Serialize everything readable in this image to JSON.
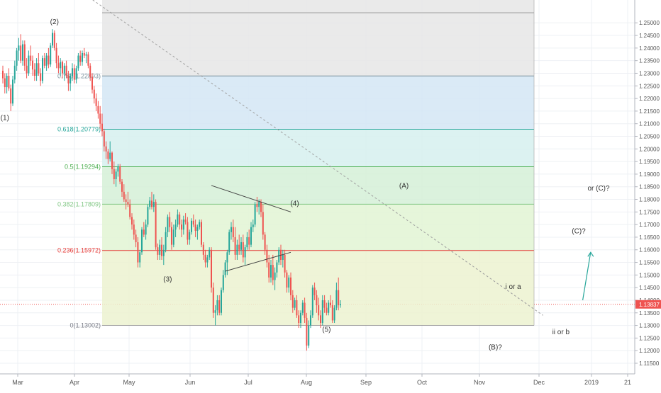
{
  "chart_data": {
    "type": "candlestick",
    "timeframe": "daily",
    "ylim": [
      1.115,
      1.254
    ],
    "axis": {
      "y_ticks": [
        "1.25000",
        "1.24500",
        "1.24000",
        "1.23500",
        "1.23000",
        "1.22500",
        "1.22000",
        "1.21500",
        "1.21000",
        "1.20500",
        "1.20000",
        "1.19500",
        "1.19000",
        "1.18500",
        "1.18000",
        "1.17500",
        "1.17000",
        "1.16500",
        "1.16000",
        "1.15500",
        "1.15000",
        "1.14500",
        "1.14000",
        "1.13500",
        "1.13000",
        "1.12500",
        "1.12000",
        "1.11500"
      ],
      "x_ticks": [
        "Mar",
        "Apr",
        "May",
        "Jun",
        "Jul",
        "Aug",
        "Sep",
        "Oct",
        "Nov",
        "Dec",
        "2019",
        "21"
      ],
      "last_price_label": "1.13837",
      "last_price_value": 1.13837
    },
    "fibonacci": {
      "start_index": 50,
      "end_index": 260,
      "levels": [
        {
          "label": "1(1.25400)",
          "value": 1.254,
          "show_label": false,
          "line": "#9e9e9e",
          "fill": "#e6e6e6"
        },
        {
          "label": "0.786(1.22893)",
          "value": 1.22893,
          "show_label": true,
          "line": "#78909c",
          "fill": "#d4e6f4",
          "text": "#78909c"
        },
        {
          "label": "0.618(1.20779)",
          "value": 1.20779,
          "show_label": true,
          "line": "#26a69a",
          "fill": "#d6f0ee",
          "text": "#26a69a"
        },
        {
          "label": "0.5(1.19294)",
          "value": 1.19294,
          "show_label": true,
          "line": "#4caf50",
          "fill": "#d5f0d7",
          "text": "#4caf50"
        },
        {
          "label": "0.382(1.17809)",
          "value": 1.17809,
          "show_label": true,
          "line": "#81c784",
          "fill": "#e2f4d4",
          "text": "#81c784"
        },
        {
          "label": "0.236(1.15972)",
          "value": 1.15972,
          "show_label": true,
          "line": "#e53935",
          "fill": "#ecf2d0",
          "text": "#e53935"
        },
        {
          "label": "0(1.13002)",
          "value": 1.13002,
          "show_label": true,
          "line": "#9e9e9e",
          "fill": "#f6d4d3",
          "text": "#787b86"
        }
      ]
    },
    "annotations": [
      {
        "text": "(2)",
        "x": 26,
        "y": 1.2495
      },
      {
        "text": "(1)",
        "x": 1,
        "y": 1.2115
      },
      {
        "text": "(3)",
        "x": 83,
        "y": 1.1475
      },
      {
        "text": "(4)",
        "x": 147,
        "y": 1.1775
      },
      {
        "text": "(5)",
        "x": 163,
        "y": 1.1275
      },
      {
        "text": "(A)",
        "x": 202,
        "y": 1.1845
      },
      {
        "text": "i or a",
        "x": 257,
        "y": 1.1445
      },
      {
        "text": "(B)?",
        "x": 248,
        "y": 1.1205
      },
      {
        "text": "ii or b",
        "x": 281,
        "y": 1.1265
      },
      {
        "text": "(C)?",
        "x": 290,
        "y": 1.1665
      },
      {
        "text": "or (C)?",
        "x": 300,
        "y": 1.1835
      }
    ],
    "trendlines": [
      {
        "name": "triangle-upper",
        "x1": 105,
        "y1": 1.1855,
        "x2": 145,
        "y2": 1.175,
        "style": "solid"
      },
      {
        "name": "triangle-lower",
        "x1": 112,
        "y1": 1.1515,
        "x2": 145,
        "y2": 1.159,
        "style": "solid"
      },
      {
        "name": "long-trend",
        "x1": 40,
        "y1": 1.262,
        "x2": 272,
        "y2": 1.134,
        "style": "dashed"
      }
    ],
    "projection_arrow": {
      "x1": 292,
      "y1": 1.14,
      "x2": 296,
      "y2": 1.159
    },
    "candles": [
      [
        1.231,
        1.233,
        1.226,
        1.228
      ],
      [
        1.228,
        1.23,
        1.222,
        1.2245
      ],
      [
        1.2245,
        1.23,
        1.222,
        1.229
      ],
      [
        1.229,
        1.232,
        1.223,
        1.224
      ],
      [
        1.224,
        1.2255,
        1.215,
        1.218
      ],
      [
        1.218,
        1.229,
        1.217,
        1.2275
      ],
      [
        1.2275,
        1.235,
        1.226,
        1.233
      ],
      [
        1.233,
        1.24,
        1.231,
        1.239
      ],
      [
        1.239,
        1.244,
        1.235,
        1.241
      ],
      [
        1.241,
        1.2455,
        1.234,
        1.235
      ],
      [
        1.235,
        1.243,
        1.233,
        1.2415
      ],
      [
        1.2415,
        1.243,
        1.231,
        1.233
      ],
      [
        1.233,
        1.236,
        1.228,
        1.23
      ],
      [
        1.23,
        1.239,
        1.229,
        1.237
      ],
      [
        1.237,
        1.241,
        1.233,
        1.235
      ],
      [
        1.235,
        1.237,
        1.229,
        1.2315
      ],
      [
        1.2315,
        1.234,
        1.227,
        1.229
      ],
      [
        1.229,
        1.236,
        1.227,
        1.234
      ],
      [
        1.234,
        1.238,
        1.229,
        1.23
      ],
      [
        1.23,
        1.232,
        1.225,
        1.227
      ],
      [
        1.227,
        1.237,
        1.226,
        1.236
      ],
      [
        1.236,
        1.238,
        1.232,
        1.233
      ],
      [
        1.233,
        1.238,
        1.231,
        1.237
      ],
      [
        1.237,
        1.24,
        1.232,
        1.2335
      ],
      [
        1.2335,
        1.242,
        1.2325,
        1.241
      ],
      [
        1.241,
        1.2475,
        1.24,
        1.246
      ],
      [
        1.246,
        1.247,
        1.239,
        1.24
      ],
      [
        1.24,
        1.242,
        1.232,
        1.234
      ],
      [
        1.234,
        1.237,
        1.23,
        1.232
      ],
      [
        1.232,
        1.236,
        1.229,
        1.2345
      ],
      [
        1.2345,
        1.235,
        1.228,
        1.23
      ],
      [
        1.23,
        1.234,
        1.227,
        1.233
      ],
      [
        1.233,
        1.235,
        1.228,
        1.229
      ],
      [
        1.229,
        1.231,
        1.223,
        1.226
      ],
      [
        1.226,
        1.23,
        1.223,
        1.229
      ],
      [
        1.229,
        1.234,
        1.227,
        1.232
      ],
      [
        1.232,
        1.2335,
        1.226,
        1.2275
      ],
      [
        1.2275,
        1.233,
        1.226,
        1.232
      ],
      [
        1.232,
        1.238,
        1.231,
        1.237
      ],
      [
        1.237,
        1.239,
        1.233,
        1.2345
      ],
      [
        1.2345,
        1.239,
        1.233,
        1.238
      ],
      [
        1.238,
        1.24,
        1.236,
        1.237
      ],
      [
        1.237,
        1.2385,
        1.234,
        1.2375
      ],
      [
        1.2375,
        1.2385,
        1.232,
        1.233
      ],
      [
        1.233,
        1.234,
        1.227,
        1.2285
      ],
      [
        1.2285,
        1.23,
        1.222,
        1.2235
      ],
      [
        1.2235,
        1.225,
        1.218,
        1.22
      ],
      [
        1.22,
        1.222,
        1.215,
        1.217
      ],
      [
        1.217,
        1.219,
        1.212,
        1.214
      ],
      [
        1.214,
        1.217,
        1.208,
        1.21
      ],
      [
        1.21,
        1.214,
        1.205,
        1.207
      ],
      [
        1.207,
        1.208,
        1.199,
        1.201
      ],
      [
        1.201,
        1.203,
        1.196,
        1.199
      ],
      [
        1.199,
        1.2,
        1.194,
        1.196
      ],
      [
        1.196,
        1.203,
        1.195,
        1.1985
      ],
      [
        1.1985,
        1.199,
        1.19,
        1.192
      ],
      [
        1.192,
        1.195,
        1.186,
        1.188
      ],
      [
        1.188,
        1.192,
        1.185,
        1.191
      ],
      [
        1.191,
        1.194,
        1.189,
        1.193
      ],
      [
        1.193,
        1.194,
        1.186,
        1.187
      ],
      [
        1.187,
        1.188,
        1.181,
        1.183
      ],
      [
        1.183,
        1.186,
        1.179,
        1.18
      ],
      [
        1.18,
        1.182,
        1.176,
        1.179
      ],
      [
        1.179,
        1.183,
        1.177,
        1.178
      ],
      [
        1.178,
        1.18,
        1.172,
        1.173
      ],
      [
        1.173,
        1.1745,
        1.168,
        1.17
      ],
      [
        1.17,
        1.172,
        1.164,
        1.166
      ],
      [
        1.166,
        1.168,
        1.161,
        1.163
      ],
      [
        1.163,
        1.165,
        1.153,
        1.155
      ],
      [
        1.155,
        1.16,
        1.153,
        1.159
      ],
      [
        1.159,
        1.169,
        1.158,
        1.168
      ],
      [
        1.168,
        1.171,
        1.165,
        1.166
      ],
      [
        1.166,
        1.172,
        1.164,
        1.17
      ],
      [
        1.17,
        1.178,
        1.169,
        1.177
      ],
      [
        1.177,
        1.181,
        1.176,
        1.1795
      ],
      [
        1.1795,
        1.183,
        1.176,
        1.177
      ],
      [
        1.177,
        1.182,
        1.175,
        1.179
      ],
      [
        1.179,
        1.18,
        1.16,
        1.161
      ],
      [
        1.161,
        1.1625,
        1.156,
        1.158
      ],
      [
        1.158,
        1.164,
        1.156,
        1.162
      ],
      [
        1.162,
        1.165,
        1.156,
        1.1575
      ],
      [
        1.1575,
        1.162,
        1.154,
        1.16
      ],
      [
        1.16,
        1.169,
        1.159,
        1.167
      ],
      [
        1.167,
        1.174,
        1.165,
        1.173
      ],
      [
        1.173,
        1.175,
        1.167,
        1.169
      ],
      [
        1.169,
        1.171,
        1.16,
        1.162
      ],
      [
        1.162,
        1.17,
        1.161,
        1.168
      ],
      [
        1.168,
        1.172,
        1.165,
        1.17
      ],
      [
        1.17,
        1.176,
        1.169,
        1.174
      ],
      [
        1.174,
        1.175,
        1.168,
        1.17
      ],
      [
        1.17,
        1.172,
        1.165,
        1.168
      ],
      [
        1.168,
        1.1735,
        1.166,
        1.172
      ],
      [
        1.172,
        1.1745,
        1.17,
        1.171
      ],
      [
        1.171,
        1.173,
        1.162,
        1.164
      ],
      [
        1.164,
        1.168,
        1.162,
        1.167
      ],
      [
        1.167,
        1.1725,
        1.166,
        1.1715
      ],
      [
        1.1715,
        1.174,
        1.169,
        1.17
      ],
      [
        1.17,
        1.172,
        1.165,
        1.1675
      ],
      [
        1.1675,
        1.17,
        1.164,
        1.169
      ],
      [
        1.169,
        1.172,
        1.168,
        1.171
      ],
      [
        1.171,
        1.172,
        1.161,
        1.162
      ],
      [
        1.162,
        1.163,
        1.156,
        1.158
      ],
      [
        1.158,
        1.16,
        1.153,
        1.155
      ],
      [
        1.155,
        1.158,
        1.153,
        1.157
      ],
      [
        1.157,
        1.161,
        1.156,
        1.16
      ],
      [
        1.16,
        1.161,
        1.143,
        1.145
      ],
      [
        1.145,
        1.147,
        1.133,
        1.135
      ],
      [
        1.135,
        1.138,
        1.13,
        1.136
      ],
      [
        1.136,
        1.142,
        1.134,
        1.14
      ],
      [
        1.14,
        1.142,
        1.134,
        1.135
      ],
      [
        1.135,
        1.145,
        1.134,
        1.144
      ],
      [
        1.144,
        1.152,
        1.143,
        1.15
      ],
      [
        1.15,
        1.156,
        1.149,
        1.155
      ],
      [
        1.155,
        1.16,
        1.15,
        1.159
      ],
      [
        1.159,
        1.168,
        1.158,
        1.167
      ],
      [
        1.167,
        1.171,
        1.164,
        1.169
      ],
      [
        1.169,
        1.172,
        1.163,
        1.165
      ],
      [
        1.165,
        1.169,
        1.156,
        1.158
      ],
      [
        1.158,
        1.164,
        1.156,
        1.162
      ],
      [
        1.162,
        1.166,
        1.158,
        1.16
      ],
      [
        1.16,
        1.165,
        1.158,
        1.163
      ],
      [
        1.163,
        1.166,
        1.155,
        1.157
      ],
      [
        1.157,
        1.162,
        1.154,
        1.161
      ],
      [
        1.161,
        1.167,
        1.16,
        1.165
      ],
      [
        1.165,
        1.168,
        1.16,
        1.162
      ],
      [
        1.162,
        1.171,
        1.161,
        1.169
      ],
      [
        1.169,
        1.172,
        1.167,
        1.17
      ],
      [
        1.17,
        1.179,
        1.169,
        1.178
      ],
      [
        1.178,
        1.181,
        1.175,
        1.177
      ],
      [
        1.177,
        1.18,
        1.174,
        1.179
      ],
      [
        1.179,
        1.18,
        1.173,
        1.175
      ],
      [
        1.175,
        1.178,
        1.164,
        1.166
      ],
      [
        1.166,
        1.167,
        1.158,
        1.16
      ],
      [
        1.16,
        1.162,
        1.153,
        1.155
      ],
      [
        1.155,
        1.158,
        1.147,
        1.149
      ],
      [
        1.149,
        1.156,
        1.147,
        1.154
      ],
      [
        1.154,
        1.158,
        1.146,
        1.148
      ],
      [
        1.148,
        1.153,
        1.144,
        1.151
      ],
      [
        1.151,
        1.156,
        1.149,
        1.155
      ],
      [
        1.155,
        1.161,
        1.154,
        1.16
      ],
      [
        1.16,
        1.162,
        1.154,
        1.156
      ],
      [
        1.156,
        1.16,
        1.153,
        1.158
      ],
      [
        1.158,
        1.16,
        1.149,
        1.151
      ],
      [
        1.151,
        1.152,
        1.143,
        1.145
      ],
      [
        1.145,
        1.15,
        1.143,
        1.149
      ],
      [
        1.149,
        1.151,
        1.14,
        1.142
      ],
      [
        1.142,
        1.144,
        1.135,
        1.137
      ],
      [
        1.137,
        1.141,
        1.136,
        1.14
      ],
      [
        1.14,
        1.142,
        1.133,
        1.134
      ],
      [
        1.134,
        1.136,
        1.129,
        1.131
      ],
      [
        1.131,
        1.136,
        1.129,
        1.135
      ],
      [
        1.135,
        1.14,
        1.134,
        1.139
      ],
      [
        1.139,
        1.141,
        1.131,
        1.133
      ],
      [
        1.133,
        1.135,
        1.12,
        1.122
      ],
      [
        1.122,
        1.132,
        1.121,
        1.13
      ],
      [
        1.13,
        1.136,
        1.129,
        1.134
      ],
      [
        1.134,
        1.146,
        1.133,
        1.145
      ],
      [
        1.145,
        1.147,
        1.14,
        1.142
      ],
      [
        1.142,
        1.144,
        1.135,
        1.138
      ],
      [
        1.138,
        1.141,
        1.132,
        1.134
      ],
      [
        1.134,
        1.136,
        1.129,
        1.131
      ],
      [
        1.131,
        1.142,
        1.13,
        1.14
      ],
      [
        1.14,
        1.142,
        1.135,
        1.137
      ],
      [
        1.137,
        1.139,
        1.134,
        1.135
      ],
      [
        1.135,
        1.14,
        1.134,
        1.139
      ],
      [
        1.139,
        1.142,
        1.137,
        1.138
      ],
      [
        1.138,
        1.14,
        1.131,
        1.132
      ],
      [
        1.132,
        1.138,
        1.131,
        1.137
      ],
      [
        1.137,
        1.147,
        1.136,
        1.144
      ],
      [
        1.144,
        1.149,
        1.136,
        1.138
      ],
      [
        1.138,
        1.14,
        1.137,
        1.1384
      ]
    ]
  }
}
